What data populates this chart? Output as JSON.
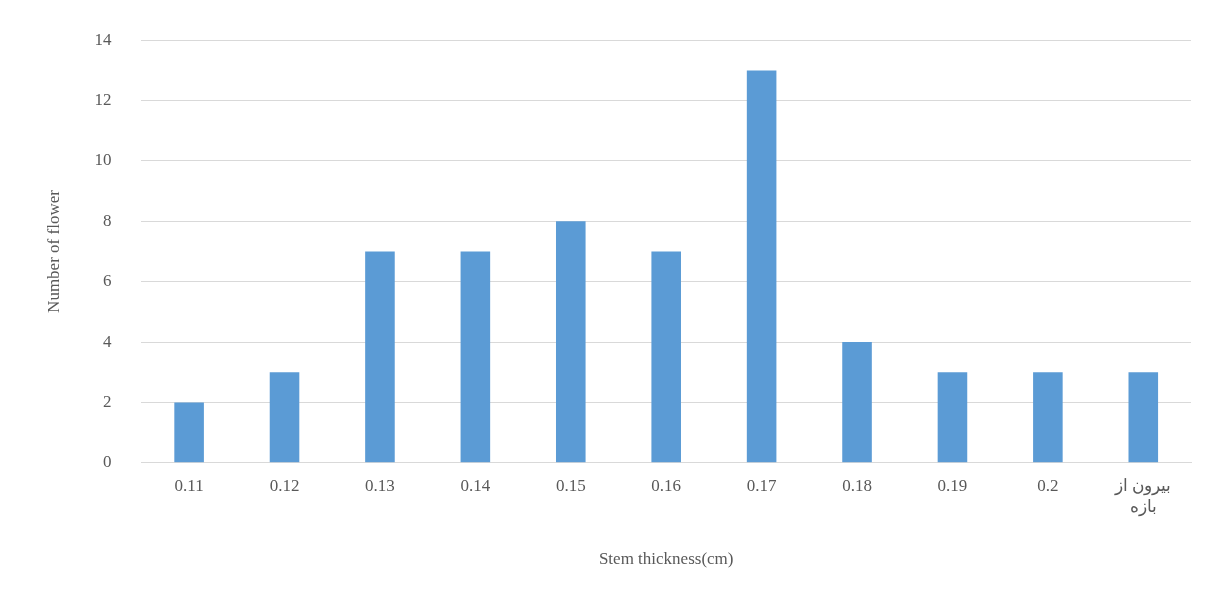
{
  "chart_data": {
    "type": "bar",
    "xlabel": "Stem thickness(cm)",
    "ylabel": "Number of flower",
    "categories": [
      "0.11",
      "0.12",
      "0.13",
      "0.14",
      "0.15",
      "0.16",
      "0.17",
      "0.18",
      "0.19",
      "0.2",
      "بیرون از بازه"
    ],
    "values": [
      2,
      3,
      7,
      7,
      8,
      7,
      13,
      4,
      3,
      3,
      3
    ],
    "color": "#5b9bd5",
    "ylim": [
      0,
      14
    ],
    "yticks": [
      0,
      2,
      4,
      6,
      8,
      10,
      12,
      14
    ],
    "grid": "y",
    "legend": false
  }
}
